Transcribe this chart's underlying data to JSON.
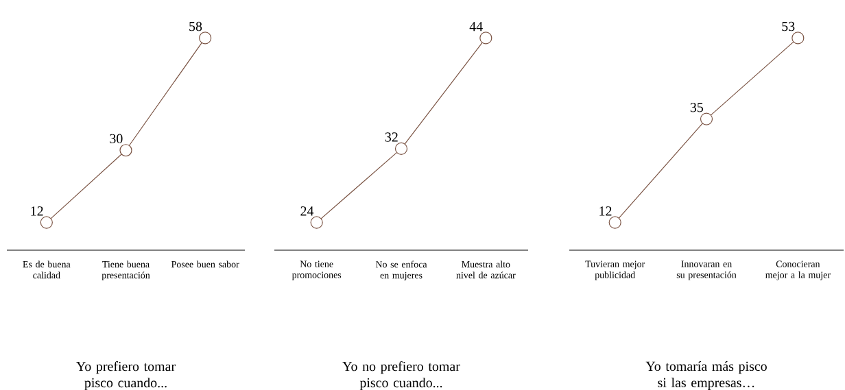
{
  "chart_data": [
    {
      "type": "line",
      "title": "Yo prefiero tomar pisco cuando...",
      "categories": [
        "Es de buena calidad",
        "Tiene buena presentación",
        "Posee buen sabor"
      ],
      "values": [
        12,
        30,
        58
      ],
      "color": "#7b5444",
      "marker": "circle",
      "data_labels": true
    },
    {
      "type": "line",
      "title": "Yo no prefiero tomar pisco cuando...",
      "categories": [
        "No tiene promociones",
        "No se enfoca en mujeres",
        "Muestra alto nivel de azúcar"
      ],
      "values": [
        24,
        32,
        44
      ],
      "color": "#7b5444",
      "marker": "circle",
      "data_labels": true
    },
    {
      "type": "line",
      "title": "Yo tomaría más pisco si las empresas…",
      "categories": [
        "Tuvieran mejor publicidad",
        "Innovaran en su presentación",
        "Conocieran mejor a la mujer"
      ],
      "values": [
        12,
        35,
        53
      ],
      "color": "#7b5444",
      "marker": "circle",
      "data_labels": true
    }
  ]
}
